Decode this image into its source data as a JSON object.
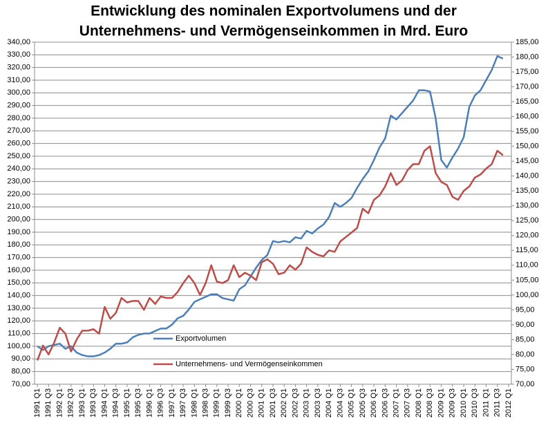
{
  "chart_data": {
    "type": "line",
    "title": [
      "Entwicklung des nominalen Exportvolumens und der",
      "Unternehmens- und Vermögenseinkommen in Mrd. Euro"
    ],
    "categories": [
      "1991 Q1",
      null,
      "1991 Q3",
      null,
      "1992 Q1",
      null,
      "1992 Q3",
      null,
      "1993 Q1",
      null,
      "1993 Q3",
      null,
      "1994 Q1",
      null,
      "1994 Q3",
      null,
      "1995 Q1",
      null,
      "1995 Q3",
      null,
      "1996 Q1",
      null,
      "1996 Q3",
      null,
      "1997 Q1",
      null,
      "1997 Q3",
      null,
      "1998 Q1",
      null,
      "1998 Q3",
      null,
      "1999 Q1",
      null,
      "1999 Q3",
      null,
      "2000 Q1",
      null,
      "2000 Q3",
      null,
      "2001 Q1",
      null,
      "2001 Q3",
      null,
      "2002 Q1",
      null,
      "2002 Q3",
      null,
      "2003 Q1",
      null,
      "2003 Q3",
      null,
      "2004 Q1",
      null,
      "2004 Q3",
      null,
      "2005 Q1",
      null,
      "2005 Q3",
      null,
      "2006 Q1",
      null,
      "2006 Q3",
      null,
      "2007 Q1",
      null,
      "2007 Q3",
      null,
      "2008 Q1",
      null,
      "2008 Q3",
      null,
      "2009 Q1",
      null,
      "2009 Q3",
      null,
      "2010 Q1",
      null,
      "2010 Q3",
      null,
      "2011 Q1",
      null,
      "2011 Q3",
      null,
      "2012 Q1"
    ],
    "series": [
      {
        "name": "Exportvolumen",
        "color": "#4a7ebb",
        "axis": "y",
        "values": [
          100,
          97,
          100,
          101,
          102,
          98,
          100,
          95,
          93,
          92,
          92,
          93,
          95,
          98,
          102,
          102,
          103,
          107,
          109,
          110,
          110,
          112,
          114,
          114,
          117,
          122,
          124,
          129,
          135,
          137,
          139,
          141,
          141,
          138,
          137,
          136,
          145,
          148,
          155,
          162,
          168,
          172,
          183,
          182,
          183,
          182,
          186,
          185,
          191,
          189,
          193,
          196,
          202,
          213,
          210,
          213,
          217,
          225,
          232,
          238,
          247,
          257,
          264,
          282,
          279,
          284,
          289,
          294,
          302,
          302,
          301,
          280,
          247,
          241,
          249,
          256,
          265,
          289,
          298,
          302,
          310,
          318,
          329,
          327,
          null
        ]
      },
      {
        "name": "Unternehmens- und Vermögenseinkommen",
        "color": "#be4b48",
        "axis": "y2",
        "values": [
          78,
          83,
          80,
          84,
          89,
          87,
          81,
          85,
          88,
          88,
          88.5,
          87,
          96,
          92,
          94,
          99,
          97.5,
          98,
          98,
          95,
          99,
          97,
          99.5,
          99,
          99,
          101,
          104,
          106.5,
          104,
          100,
          104,
          110,
          104.5,
          104,
          105,
          110,
          106,
          107.5,
          106.5,
          105,
          111,
          112,
          110.5,
          107,
          107.5,
          110,
          108.5,
          110.5,
          116,
          114.5,
          113.5,
          113,
          115,
          114.5,
          118,
          119.5,
          121,
          122.5,
          129,
          127.5,
          132,
          133.5,
          136.5,
          141,
          137,
          138.5,
          142,
          144,
          144,
          148.5,
          150,
          141,
          138,
          137,
          133,
          132,
          135,
          136.5,
          139.5,
          140.5,
          142.5,
          144,
          148.5,
          147,
          null
        ]
      }
    ],
    "ylim": [
      70,
      340
    ],
    "yticks": [
      {
        "value": 70,
        "label": "70,00"
      },
      {
        "value": 80,
        "label": "80,00"
      },
      {
        "value": 90,
        "label": "90,00"
      },
      {
        "value": 100,
        "label": "100,00"
      },
      {
        "value": 110,
        "label": "110,00"
      },
      {
        "value": 120,
        "label": "120,00"
      },
      {
        "value": 130,
        "label": "130,00"
      },
      {
        "value": 140,
        "label": "140,00"
      },
      {
        "value": 150,
        "label": "150,00"
      },
      {
        "value": 160,
        "label": "160,00"
      },
      {
        "value": 170,
        "label": "170,00"
      },
      {
        "value": 180,
        "label": "180,00"
      },
      {
        "value": 190,
        "label": "190,00"
      },
      {
        "value": 200,
        "label": "200,00"
      },
      {
        "value": 210,
        "label": "210,00"
      },
      {
        "value": 220,
        "label": "220,00"
      },
      {
        "value": 230,
        "label": "230,00"
      },
      {
        "value": 240,
        "label": "240,00"
      },
      {
        "value": 250,
        "label": "250,00"
      },
      {
        "value": 260,
        "label": "260,00"
      },
      {
        "value": 270,
        "label": "270,00"
      },
      {
        "value": 280,
        "label": "280,00"
      },
      {
        "value": 290,
        "label": "290,00"
      },
      {
        "value": 300,
        "label": "300,00"
      },
      {
        "value": 310,
        "label": "310,00"
      },
      {
        "value": 320,
        "label": "320,00"
      },
      {
        "value": 330,
        "label": "330,00"
      },
      {
        "value": 340,
        "label": "340,00"
      }
    ],
    "y2lim": [
      70,
      185
    ],
    "y2ticks": [
      {
        "value": 70,
        "label": "70,00"
      },
      {
        "value": 75,
        "label": "75,00"
      },
      {
        "value": 80,
        "label": "80,00"
      },
      {
        "value": 85,
        "label": "85,00"
      },
      {
        "value": 90,
        "label": "90,00"
      },
      {
        "value": 95,
        "label": "95,00"
      },
      {
        "value": 100,
        "label": "100,00"
      },
      {
        "value": 105,
        "label": "105,00"
      },
      {
        "value": 110,
        "label": "110,00"
      },
      {
        "value": 115,
        "label": "115,00"
      },
      {
        "value": 120,
        "label": "120,00"
      },
      {
        "value": 125,
        "label": "125,00"
      },
      {
        "value": 130,
        "label": "130,00"
      },
      {
        "value": 135,
        "label": "135,00"
      },
      {
        "value": 140,
        "label": "140,00"
      },
      {
        "value": 145,
        "label": "145,00"
      },
      {
        "value": 150,
        "label": "150,00"
      },
      {
        "value": 155,
        "label": "155,00"
      },
      {
        "value": 160,
        "label": "160,00"
      },
      {
        "value": 165,
        "label": "165,00"
      },
      {
        "value": 170,
        "label": "170,00"
      },
      {
        "value": 175,
        "label": "175,00"
      },
      {
        "value": 180,
        "label": "180,00"
      },
      {
        "value": 185,
        "label": "185,00"
      }
    ],
    "grid": true
  }
}
